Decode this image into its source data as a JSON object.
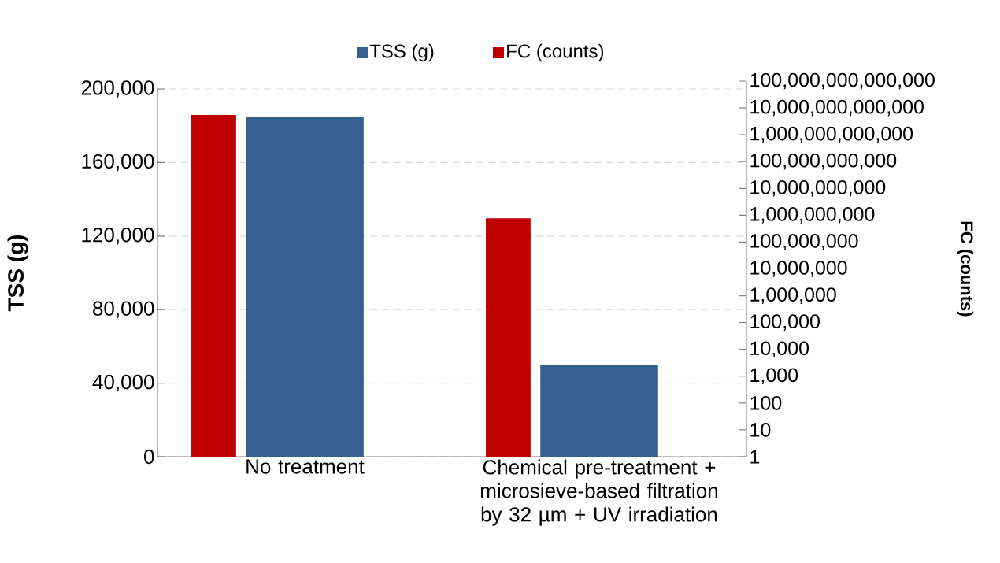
{
  "chart_data": {
    "type": "bar",
    "categories": [
      "No treatment",
      "Chemical pre-treatment + microsieve-based filtration by 32 µm + UV irradiation"
    ],
    "series": [
      {
        "name": "TSS (g)",
        "color": "#366092",
        "values": [
          185000,
          50000
        ]
      },
      {
        "name": "FC (counts)",
        "color": "#c00000",
        "values": [
          5500000000000,
          770000000
        ],
        "axis": "y2"
      }
    ],
    "ylabel": "TSS (g)",
    "y2label": "FC (counts)",
    "ylim": [
      0,
      200000
    ],
    "yticks": [
      {
        "value": 0,
        "label": "0"
      },
      {
        "value": 40000,
        "label": "40,000"
      },
      {
        "value": 80000,
        "label": "80,000"
      },
      {
        "value": 120000,
        "label": "120,000"
      },
      {
        "value": 160000,
        "label": "160,000"
      },
      {
        "value": 200000,
        "label": "200,000"
      }
    ],
    "y2lim": [
      1,
      100000000000000
    ],
    "y2ticks": [
      1,
      10,
      100,
      {
        "value": 1000,
        "label": "1,000"
      },
      {
        "value": 10000,
        "label": "10,000"
      },
      {
        "value": 100000,
        "label": "100,000"
      },
      {
        "value": 1000000,
        "label": "1,000,000"
      },
      {
        "value": 10000000,
        "label": "10,000,000"
      },
      {
        "value": 100000000,
        "label": "100,000,000"
      },
      {
        "value": 1000000000,
        "label": "1,000,000,000"
      },
      {
        "value": 10000000000,
        "label": "10,000,000,000"
      },
      {
        "value": 100000000000,
        "label": "100,000,000,000"
      },
      {
        "value": 1000000000000,
        "label": "1,000,000,000,000"
      },
      {
        "value": 10000000000000,
        "label": "10,000,000,000,000"
      },
      {
        "value": 100000000000000,
        "label": "100,000,000,000,000"
      }
    ],
    "log": "y2",
    "grid": "y",
    "legend": "top"
  }
}
